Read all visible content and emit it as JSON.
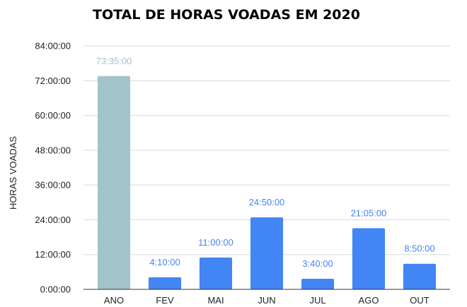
{
  "chart_data": {
    "type": "bar",
    "title": "TOTAL DE HORAS VOADAS EM 2020",
    "xlabel": "",
    "ylabel": "HORAS VOADAS",
    "categories": [
      "ANO",
      "FEV",
      "MAI",
      "JUN",
      "JUL",
      "AGO",
      "OUT"
    ],
    "values": [
      73.5833,
      4.1667,
      11.0,
      24.8333,
      3.6667,
      21.0833,
      8.8333
    ],
    "data_labels": [
      "73:35:00",
      "4:10:00",
      "11:00:00",
      "24:50:00",
      "3:40:00",
      "21:05:00",
      "8:50:00"
    ],
    "ylim": [
      0,
      84
    ],
    "yticks": [
      0,
      12,
      24,
      36,
      48,
      60,
      72,
      84
    ],
    "ytick_labels": [
      "0:00:00",
      "12:00:00",
      "24:00:00",
      "36:00:00",
      "48:00:00",
      "60:00:00",
      "72:00:00",
      "84:00:00"
    ],
    "grid": true,
    "legend": "none",
    "bar_colors": [
      "#a2c4c9",
      "#4285f4",
      "#4285f4",
      "#4285f4",
      "#4285f4",
      "#4285f4",
      "#4285f4"
    ],
    "label_colors": [
      "#a2c4c9",
      "#4285f4",
      "#4285f4",
      "#4285f4",
      "#4285f4",
      "#4285f4",
      "#4285f4"
    ]
  }
}
